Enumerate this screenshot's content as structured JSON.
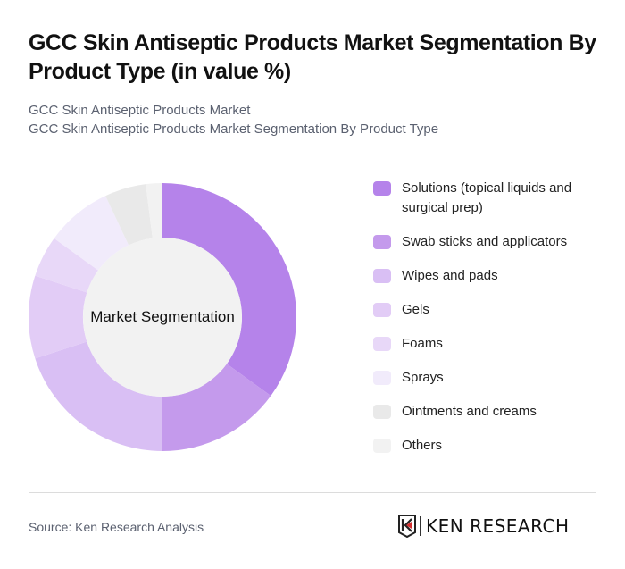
{
  "header": {
    "title": "GCC Skin Antiseptic Products Market Segmentation By Product Type (in value %)",
    "subtitle_line1": "GCC Skin Antiseptic Products Market",
    "subtitle_line2": "GCC Skin Antiseptic Products Market Segmentation By Product Type"
  },
  "chart": {
    "center_label": "Market Segmentation"
  },
  "legend": {
    "items": [
      {
        "label": "Solutions (topical liquids and surgical prep)",
        "color": "#B583EA"
      },
      {
        "label": "Swab sticks and applicators",
        "color": "#C49AEC"
      },
      {
        "label": "Wipes and pads",
        "color": "#D9BFF4"
      },
      {
        "label": "Gels",
        "color": "#E2CCF6"
      },
      {
        "label": "Foams",
        "color": "#E8D8F8"
      },
      {
        "label": "Sprays",
        "color": "#F1EBFB"
      },
      {
        "label": "Ointments and creams",
        "color": "#E9E9E9"
      },
      {
        "label": "Others",
        "color": "#F2F2F2"
      }
    ]
  },
  "footer": {
    "source": "Source: Ken Research Analysis",
    "logo_text": "KEN RESEARCH"
  },
  "chart_data": {
    "type": "pie",
    "subtype": "donut",
    "title": "GCC Skin Antiseptic Products Market Segmentation By Product Type (in value %)",
    "center_label": "Market Segmentation",
    "categories": [
      "Solutions (topical liquids and surgical prep)",
      "Swab sticks and applicators",
      "Wipes and pads",
      "Gels",
      "Foams",
      "Sprays",
      "Ointments and creams",
      "Others"
    ],
    "values": [
      35,
      15,
      20,
      10,
      5,
      8,
      5,
      2
    ],
    "colors": [
      "#B583EA",
      "#C49AEC",
      "#D9BFF4",
      "#E2CCF6",
      "#E8D8F8",
      "#F1EBFB",
      "#E9E9E9",
      "#F2F2F2"
    ],
    "unit": "%",
    "legend_position": "right",
    "start_angle": "12 o'clock, clockwise"
  }
}
